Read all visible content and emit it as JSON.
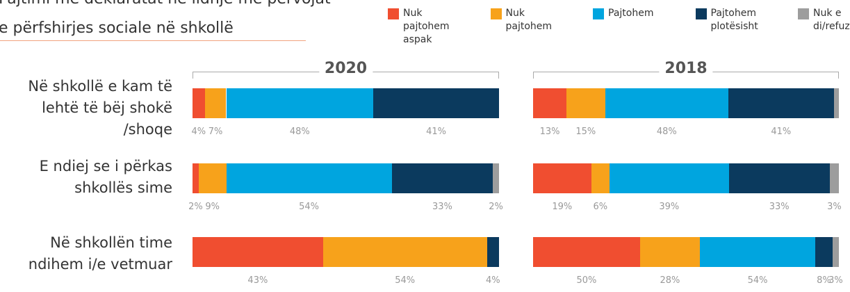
{
  "chart_data": {
    "type": "bar",
    "stacked": "percent",
    "title": [
      "Pajtimi me deklaratat në lidhje me përvojat",
      "e përfshirjes sociale në shkollë"
    ],
    "categories": [
      "Në shkollë e kam të lehtë të bëj shokë /shoqe",
      "E ndiej se i përkas shkollës sime",
      "Në shkollën time ndihem i/e vetmuar"
    ],
    "series": [
      {
        "name": "Nuk pajtohem aspak",
        "color": "#f04e30"
      },
      {
        "name": "Nuk pajtohem",
        "color": "#f7a21b"
      },
      {
        "name": "Pajtohem",
        "color": "#00a5df"
      },
      {
        "name": "Pajtohem plotësisht",
        "color": "#0b3a5e"
      },
      {
        "name": "Nuk e di/refuzon",
        "color": "#9d9d9d"
      }
    ],
    "panels": [
      {
        "title": "2020",
        "series": [
          {
            "values": [
              4,
              2,
              43
            ],
            "value_labels": [
              "4%",
              "2%",
              "43%"
            ]
          },
          {
            "values": [
              7,
              9,
              54
            ],
            "value_labels": [
              "7%",
              "9%",
              "54%"
            ]
          },
          {
            "values": [
              48,
              54,
              null
            ],
            "value_labels": [
              "48%",
              "54%",
              null
            ]
          },
          {
            "values": [
              41,
              33,
              4
            ],
            "value_labels": [
              "41%",
              "33%",
              "4%"
            ]
          },
          {
            "values": [
              null,
              2,
              null
            ],
            "value_labels": [
              null,
              "2%",
              null
            ]
          }
        ]
      },
      {
        "title": "2018",
        "series": [
          {
            "values": [
              13,
              19,
              50
            ],
            "value_labels": [
              "13%",
              "19%",
              "50%"
            ]
          },
          {
            "values": [
              15,
              6,
              28
            ],
            "value_labels": [
              "15%",
              "6%",
              "28%"
            ]
          },
          {
            "values": [
              48,
              39,
              54
            ],
            "value_labels": [
              "48%",
              "39%",
              "54%"
            ]
          },
          {
            "values": [
              41,
              33,
              8
            ],
            "value_labels": [
              "41%",
              "33%",
              "8%"
            ]
          },
          {
            "values": [
              2,
              3,
              3
            ],
            "value_labels": [
              null,
              "3%",
              "3%"
            ]
          }
        ]
      }
    ]
  }
}
